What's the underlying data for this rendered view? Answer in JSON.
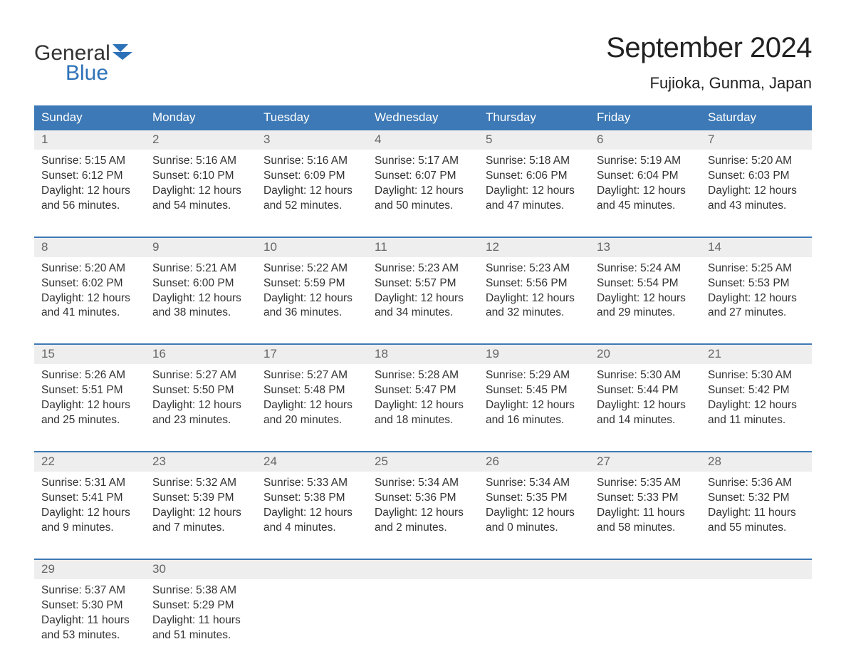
{
  "logo": {
    "word1": "General",
    "word2": "Blue",
    "icon_color": "#2d72b8"
  },
  "title": "September 2024",
  "location": "Fujioka, Gunma, Japan",
  "colors": {
    "header_bg": "#3d79b6",
    "band_bg": "#eeeeee",
    "text": "#333333",
    "muted": "#666666",
    "rule": "#3d79b6"
  },
  "fonts": {
    "title_pt": 40,
    "location_pt": 22,
    "dow_pt": 17,
    "body_pt": 15.5
  },
  "layout": {
    "cols": 7,
    "first_dow_index": 0
  },
  "dow": [
    "Sunday",
    "Monday",
    "Tuesday",
    "Wednesday",
    "Thursday",
    "Friday",
    "Saturday"
  ],
  "days": [
    {
      "n": "1",
      "sr": "Sunrise: 5:15 AM",
      "ss": "Sunset: 6:12 PM",
      "d1": "Daylight: 12 hours",
      "d2": "and 56 minutes."
    },
    {
      "n": "2",
      "sr": "Sunrise: 5:16 AM",
      "ss": "Sunset: 6:10 PM",
      "d1": "Daylight: 12 hours",
      "d2": "and 54 minutes."
    },
    {
      "n": "3",
      "sr": "Sunrise: 5:16 AM",
      "ss": "Sunset: 6:09 PM",
      "d1": "Daylight: 12 hours",
      "d2": "and 52 minutes."
    },
    {
      "n": "4",
      "sr": "Sunrise: 5:17 AM",
      "ss": "Sunset: 6:07 PM",
      "d1": "Daylight: 12 hours",
      "d2": "and 50 minutes."
    },
    {
      "n": "5",
      "sr": "Sunrise: 5:18 AM",
      "ss": "Sunset: 6:06 PM",
      "d1": "Daylight: 12 hours",
      "d2": "and 47 minutes."
    },
    {
      "n": "6",
      "sr": "Sunrise: 5:19 AM",
      "ss": "Sunset: 6:04 PM",
      "d1": "Daylight: 12 hours",
      "d2": "and 45 minutes."
    },
    {
      "n": "7",
      "sr": "Sunrise: 5:20 AM",
      "ss": "Sunset: 6:03 PM",
      "d1": "Daylight: 12 hours",
      "d2": "and 43 minutes."
    },
    {
      "n": "8",
      "sr": "Sunrise: 5:20 AM",
      "ss": "Sunset: 6:02 PM",
      "d1": "Daylight: 12 hours",
      "d2": "and 41 minutes."
    },
    {
      "n": "9",
      "sr": "Sunrise: 5:21 AM",
      "ss": "Sunset: 6:00 PM",
      "d1": "Daylight: 12 hours",
      "d2": "and 38 minutes."
    },
    {
      "n": "10",
      "sr": "Sunrise: 5:22 AM",
      "ss": "Sunset: 5:59 PM",
      "d1": "Daylight: 12 hours",
      "d2": "and 36 minutes."
    },
    {
      "n": "11",
      "sr": "Sunrise: 5:23 AM",
      "ss": "Sunset: 5:57 PM",
      "d1": "Daylight: 12 hours",
      "d2": "and 34 minutes."
    },
    {
      "n": "12",
      "sr": "Sunrise: 5:23 AM",
      "ss": "Sunset: 5:56 PM",
      "d1": "Daylight: 12 hours",
      "d2": "and 32 minutes."
    },
    {
      "n": "13",
      "sr": "Sunrise: 5:24 AM",
      "ss": "Sunset: 5:54 PM",
      "d1": "Daylight: 12 hours",
      "d2": "and 29 minutes."
    },
    {
      "n": "14",
      "sr": "Sunrise: 5:25 AM",
      "ss": "Sunset: 5:53 PM",
      "d1": "Daylight: 12 hours",
      "d2": "and 27 minutes."
    },
    {
      "n": "15",
      "sr": "Sunrise: 5:26 AM",
      "ss": "Sunset: 5:51 PM",
      "d1": "Daylight: 12 hours",
      "d2": "and 25 minutes."
    },
    {
      "n": "16",
      "sr": "Sunrise: 5:27 AM",
      "ss": "Sunset: 5:50 PM",
      "d1": "Daylight: 12 hours",
      "d2": "and 23 minutes."
    },
    {
      "n": "17",
      "sr": "Sunrise: 5:27 AM",
      "ss": "Sunset: 5:48 PM",
      "d1": "Daylight: 12 hours",
      "d2": "and 20 minutes."
    },
    {
      "n": "18",
      "sr": "Sunrise: 5:28 AM",
      "ss": "Sunset: 5:47 PM",
      "d1": "Daylight: 12 hours",
      "d2": "and 18 minutes."
    },
    {
      "n": "19",
      "sr": "Sunrise: 5:29 AM",
      "ss": "Sunset: 5:45 PM",
      "d1": "Daylight: 12 hours",
      "d2": "and 16 minutes."
    },
    {
      "n": "20",
      "sr": "Sunrise: 5:30 AM",
      "ss": "Sunset: 5:44 PM",
      "d1": "Daylight: 12 hours",
      "d2": "and 14 minutes."
    },
    {
      "n": "21",
      "sr": "Sunrise: 5:30 AM",
      "ss": "Sunset: 5:42 PM",
      "d1": "Daylight: 12 hours",
      "d2": "and 11 minutes."
    },
    {
      "n": "22",
      "sr": "Sunrise: 5:31 AM",
      "ss": "Sunset: 5:41 PM",
      "d1": "Daylight: 12 hours",
      "d2": "and 9 minutes."
    },
    {
      "n": "23",
      "sr": "Sunrise: 5:32 AM",
      "ss": "Sunset: 5:39 PM",
      "d1": "Daylight: 12 hours",
      "d2": "and 7 minutes."
    },
    {
      "n": "24",
      "sr": "Sunrise: 5:33 AM",
      "ss": "Sunset: 5:38 PM",
      "d1": "Daylight: 12 hours",
      "d2": "and 4 minutes."
    },
    {
      "n": "25",
      "sr": "Sunrise: 5:34 AM",
      "ss": "Sunset: 5:36 PM",
      "d1": "Daylight: 12 hours",
      "d2": "and 2 minutes."
    },
    {
      "n": "26",
      "sr": "Sunrise: 5:34 AM",
      "ss": "Sunset: 5:35 PM",
      "d1": "Daylight: 12 hours",
      "d2": "and 0 minutes."
    },
    {
      "n": "27",
      "sr": "Sunrise: 5:35 AM",
      "ss": "Sunset: 5:33 PM",
      "d1": "Daylight: 11 hours",
      "d2": "and 58 minutes."
    },
    {
      "n": "28",
      "sr": "Sunrise: 5:36 AM",
      "ss": "Sunset: 5:32 PM",
      "d1": "Daylight: 11 hours",
      "d2": "and 55 minutes."
    },
    {
      "n": "29",
      "sr": "Sunrise: 5:37 AM",
      "ss": "Sunset: 5:30 PM",
      "d1": "Daylight: 11 hours",
      "d2": "and 53 minutes."
    },
    {
      "n": "30",
      "sr": "Sunrise: 5:38 AM",
      "ss": "Sunset: 5:29 PM",
      "d1": "Daylight: 11 hours",
      "d2": "and 51 minutes."
    }
  ]
}
